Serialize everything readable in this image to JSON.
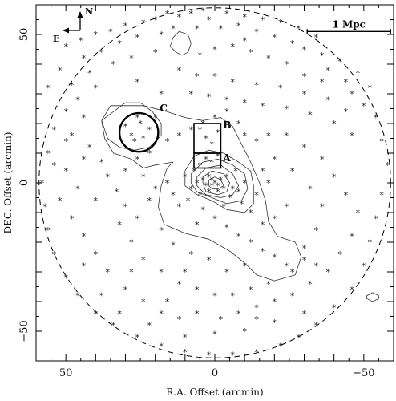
{
  "chart_data": {
    "type": "scatter",
    "title": "",
    "xlabel": "R.A. Offset (arcmin)",
    "ylabel": "DEC. Offset (arcmin)",
    "xlim": [
      60,
      -60
    ],
    "ylim": [
      -60,
      60
    ],
    "x_ticks": [
      50,
      0,
      -50
    ],
    "y_ticks": [
      50,
      0,
      -50
    ],
    "x_tick_labels": [
      "50",
      "0",
      "−50"
    ],
    "y_tick_labels": [
      "50",
      "0",
      "−50"
    ],
    "grid": false,
    "legend": "none",
    "marker": "*",
    "field_circle": {
      "center": [
        0,
        0
      ],
      "radius": 59,
      "style": "dashed"
    },
    "compass": {
      "north_label": "N",
      "east_label": "E"
    },
    "scale_bar": {
      "label": "1 Mpc",
      "x_start": -31,
      "x_end": -59,
      "y": 51
    },
    "annotations": [
      {
        "id": "A",
        "label": "A",
        "type": "box",
        "x_min": -2,
        "x_max": 7,
        "y_min": 5,
        "y_max": 10
      },
      {
        "id": "B",
        "label": "B",
        "type": "box",
        "x_min": -2,
        "x_max": 7,
        "y_min": 10,
        "y_max": 20
      },
      {
        "id": "C",
        "label": "C",
        "type": "circle",
        "center": [
          25.5,
          17
        ],
        "radius": 6.5
      }
    ],
    "contours": [
      [
        [
          35,
          26
        ],
        [
          24,
          26
        ],
        [
          16,
          24
        ],
        [
          10,
          22
        ],
        [
          4,
          21
        ],
        [
          -2,
          22
        ],
        [
          -6,
          19
        ],
        [
          -8,
          15
        ],
        [
          -10,
          11
        ],
        [
          -12,
          7
        ],
        [
          -15,
          0
        ],
        [
          -17,
          -6
        ],
        [
          -18,
          -13
        ],
        [
          -21,
          -18
        ],
        [
          -27,
          -20
        ],
        [
          -29,
          -25
        ],
        [
          -27,
          -31
        ],
        [
          -20,
          -33
        ],
        [
          -14,
          -31
        ],
        [
          -10,
          -27
        ],
        [
          -5,
          -23
        ],
        [
          2,
          -19
        ],
        [
          10,
          -17
        ],
        [
          17,
          -14
        ],
        [
          19,
          -8
        ],
        [
          18,
          -1
        ],
        [
          16,
          5
        ],
        [
          14,
          7
        ],
        [
          20,
          6
        ],
        [
          24,
          5
        ],
        [
          28,
          8
        ],
        [
          34,
          10
        ],
        [
          37,
          15
        ],
        [
          38,
          21
        ]
      ],
      [
        [
          10,
          4
        ],
        [
          7,
          9
        ],
        [
          2,
          11
        ],
        [
          -3,
          10
        ],
        [
          -8,
          7
        ],
        [
          -12,
          4
        ],
        [
          -13,
          -1
        ],
        [
          -13,
          -7
        ],
        [
          -10,
          -10
        ],
        [
          -4,
          -9
        ],
        [
          1,
          -6
        ],
        [
          6,
          -4
        ],
        [
          10,
          -1
        ]
      ],
      [
        [
          8,
          3
        ],
        [
          4,
          7
        ],
        [
          -1,
          8
        ],
        [
          -6,
          6
        ],
        [
          -10,
          3
        ],
        [
          -11,
          -2
        ],
        [
          -9,
          -6
        ],
        [
          -4,
          -7
        ],
        [
          1,
          -5
        ],
        [
          6,
          -3
        ],
        [
          8,
          0
        ]
      ],
      [
        [
          6,
          2
        ],
        [
          3,
          5
        ],
        [
          -2,
          6
        ],
        [
          -6,
          3
        ],
        [
          -8,
          -1
        ],
        [
          -6,
          -4
        ],
        [
          -2,
          -5
        ],
        [
          3,
          -4
        ],
        [
          6,
          -1
        ]
      ],
      [
        [
          4,
          2
        ],
        [
          1,
          4
        ],
        [
          -3,
          3
        ],
        [
          -5,
          0
        ],
        [
          -4,
          -3
        ],
        [
          -1,
          -4
        ],
        [
          3,
          -3
        ],
        [
          4,
          0
        ]
      ],
      [
        [
          2,
          1
        ],
        [
          0,
          2
        ],
        [
          -2,
          1
        ],
        [
          -3,
          -1
        ],
        [
          -1,
          -2
        ],
        [
          1,
          -2
        ],
        [
          2,
          -1
        ]
      ],
      [
        [
          38,
          21
        ],
        [
          34,
          24
        ],
        [
          30,
          27
        ],
        [
          25,
          27
        ],
        [
          21,
          24
        ],
        [
          18,
          20
        ],
        [
          18,
          16
        ],
        [
          22,
          12
        ],
        [
          27,
          11
        ],
        [
          32,
          12
        ],
        [
          36,
          15
        ]
      ],
      [
        [
          14,
          49
        ],
        [
          12,
          51
        ],
        [
          9,
          50
        ],
        [
          8,
          47
        ],
        [
          9,
          44
        ],
        [
          11,
          43
        ],
        [
          13,
          44
        ],
        [
          15,
          46
        ]
      ],
      [
        [
          -51,
          -38
        ],
        [
          -53,
          -37
        ],
        [
          -55,
          -38
        ],
        [
          -55,
          -39
        ],
        [
          -53,
          -40
        ],
        [
          -51,
          -39
        ]
      ]
    ],
    "points": [
      [
        4,
        58
      ],
      [
        8,
        57
      ],
      [
        12,
        56
      ],
      [
        16,
        57
      ],
      [
        20,
        55
      ],
      [
        24,
        54
      ],
      [
        30,
        53
      ],
      [
        35,
        51
      ],
      [
        40,
        50
      ],
      [
        45,
        48
      ],
      [
        50,
        46
      ],
      [
        2,
        55
      ],
      [
        -4,
        57
      ],
      [
        -10,
        56
      ],
      [
        -16,
        55
      ],
      [
        -22,
        54
      ],
      [
        -28,
        52
      ],
      [
        -34,
        49
      ],
      [
        -2,
        52
      ],
      [
        6,
        52
      ],
      [
        14,
        52
      ],
      [
        18,
        50
      ],
      [
        26,
        49
      ],
      [
        32,
        47
      ],
      [
        38,
        44
      ],
      [
        44,
        42
      ],
      [
        52,
        38
      ],
      [
        56,
        32
      ],
      [
        -8,
        53
      ],
      [
        -14,
        51
      ],
      [
        -20,
        49
      ],
      [
        -26,
        47
      ],
      [
        -30,
        45
      ],
      [
        -36,
        43
      ],
      [
        -42,
        41
      ],
      [
        -48,
        37
      ],
      [
        -52,
        32
      ],
      [
        -38,
        38
      ],
      [
        -44,
        34
      ],
      [
        -10,
        48
      ],
      [
        -6,
        46
      ],
      [
        0,
        45
      ],
      [
        5,
        43
      ],
      [
        20,
        44
      ],
      [
        28,
        42
      ],
      [
        34,
        40
      ],
      [
        42,
        37
      ],
      [
        48,
        33
      ],
      [
        -12,
        44
      ],
      [
        -18,
        42
      ],
      [
        -24,
        40
      ],
      [
        -30,
        36
      ],
      [
        -36,
        34
      ],
      [
        -46,
        30
      ],
      [
        -50,
        26
      ],
      [
        -54,
        22
      ],
      [
        -56,
        14
      ],
      [
        -58,
        6
      ],
      [
        -56,
        -4
      ],
      [
        -54,
        -12
      ],
      [
        -52,
        -20
      ],
      [
        -50,
        -28
      ],
      [
        -46,
        -36
      ],
      [
        -40,
        -42
      ],
      [
        -34,
        -48
      ],
      [
        -28,
        -52
      ],
      [
        -22,
        -55
      ],
      [
        -14,
        -57
      ],
      [
        -6,
        -58
      ],
      [
        2,
        -58
      ],
      [
        10,
        -57
      ],
      [
        18,
        -55
      ],
      [
        26,
        -52
      ],
      [
        34,
        -48
      ],
      [
        40,
        -44
      ],
      [
        46,
        -38
      ],
      [
        50,
        -32
      ],
      [
        54,
        -24
      ],
      [
        56,
        -16
      ],
      [
        57,
        -8
      ],
      [
        58,
        0
      ],
      [
        56,
        10
      ],
      [
        54,
        18
      ],
      [
        50,
        24
      ],
      [
        46,
        28
      ],
      [
        40,
        32
      ],
      [
        12,
        38
      ],
      [
        6,
        36
      ],
      [
        0,
        36
      ],
      [
        -6,
        34
      ],
      [
        -14,
        33
      ],
      [
        -22,
        32
      ],
      [
        -30,
        30
      ],
      [
        -38,
        28
      ],
      [
        -44,
        24
      ],
      [
        8,
        30
      ],
      [
        2,
        29
      ],
      [
        -4,
        28
      ],
      [
        -10,
        27
      ],
      [
        -16,
        26
      ],
      [
        -24,
        25
      ],
      [
        -32,
        23
      ],
      [
        -40,
        20
      ],
      [
        -46,
        16
      ],
      [
        18,
        30
      ],
      [
        26,
        34
      ],
      [
        44,
        22
      ],
      [
        48,
        16
      ],
      [
        42,
        12
      ],
      [
        38,
        7
      ],
      [
        36,
        2
      ],
      [
        33,
        -3
      ],
      [
        30,
        -8
      ],
      [
        40,
        -6
      ],
      [
        46,
        -2
      ],
      [
        50,
        4
      ],
      [
        48,
        -12
      ],
      [
        44,
        -18
      ],
      [
        40,
        -24
      ],
      [
        36,
        -30
      ],
      [
        30,
        -36
      ],
      [
        24,
        -40
      ],
      [
        18,
        -44
      ],
      [
        12,
        -46
      ],
      [
        6,
        -44
      ],
      [
        -2,
        -46
      ],
      [
        -8,
        -44
      ],
      [
        -14,
        -42
      ],
      [
        -20,
        -40
      ],
      [
        -26,
        -38
      ],
      [
        -32,
        -34
      ],
      [
        -38,
        -30
      ],
      [
        -42,
        -24
      ],
      [
        -46,
        -18
      ],
      [
        -48,
        -10
      ],
      [
        -44,
        -4
      ],
      [
        -40,
        2
      ],
      [
        -36,
        8
      ],
      [
        -30,
        12
      ],
      [
        -24,
        16
      ],
      [
        -18,
        16
      ],
      [
        -14,
        14
      ],
      [
        -20,
        8
      ],
      [
        -26,
        4
      ],
      [
        -32,
        -2
      ],
      [
        -36,
        -8
      ],
      [
        -34,
        -16
      ],
      [
        -30,
        -22
      ],
      [
        -24,
        -28
      ],
      [
        -18,
        -34
      ],
      [
        -12,
        -36
      ],
      [
        -6,
        -38
      ],
      [
        0,
        -38
      ],
      [
        6,
        -36
      ],
      [
        12,
        -34
      ],
      [
        18,
        -30
      ],
      [
        24,
        -26
      ],
      [
        28,
        -20
      ],
      [
        32,
        -14
      ],
      [
        26,
        -12
      ],
      [
        22,
        -6
      ],
      [
        20,
        -2
      ],
      [
        24,
        2
      ],
      [
        30,
        4
      ],
      [
        26,
        8
      ],
      [
        22,
        10
      ],
      [
        16,
        14
      ],
      [
        12,
        16
      ],
      [
        8,
        18
      ],
      [
        4,
        20
      ],
      [
        0,
        22
      ],
      [
        -4,
        24
      ],
      [
        -8,
        20
      ],
      [
        -10,
        16
      ],
      [
        28,
        16
      ],
      [
        25,
        20
      ],
      [
        22,
        18
      ],
      [
        27,
        14
      ],
      [
        24,
        15
      ],
      [
        30,
        19
      ],
      [
        20,
        22
      ],
      [
        26,
        22
      ],
      [
        3,
        15
      ],
      [
        1,
        13
      ],
      [
        5,
        18
      ],
      [
        -1,
        17
      ],
      [
        3,
        8
      ],
      [
        1,
        7
      ],
      [
        -1,
        9
      ],
      [
        5,
        6
      ],
      [
        2,
        2
      ],
      [
        1,
        1
      ],
      [
        0,
        0
      ],
      [
        -1,
        -1
      ],
      [
        1,
        -1
      ],
      [
        -2,
        1
      ],
      [
        3,
        -1
      ],
      [
        -3,
        -2
      ],
      [
        2,
        -3
      ],
      [
        -1,
        -3
      ],
      [
        4,
        1
      ],
      [
        -4,
        2
      ],
      [
        6,
        0
      ],
      [
        -6,
        -2
      ],
      [
        5,
        -4
      ],
      [
        -5,
        -5
      ],
      [
        8,
        -2
      ],
      [
        -8,
        -3
      ],
      [
        7,
        4
      ],
      [
        -7,
        4
      ],
      [
        10,
        2
      ],
      [
        -10,
        0
      ],
      [
        9,
        -6
      ],
      [
        -9,
        -7
      ],
      [
        12,
        -8
      ],
      [
        -12,
        -10
      ],
      [
        4,
        -9
      ],
      [
        -3,
        -8
      ],
      [
        0,
        -12
      ],
      [
        6,
        -14
      ],
      [
        -4,
        -15
      ],
      [
        -8,
        -18
      ],
      [
        -12,
        -20
      ],
      [
        -16,
        -23
      ],
      [
        -20,
        -25
      ],
      [
        -10,
        -28
      ],
      [
        -4,
        -30
      ],
      [
        2,
        -26
      ],
      [
        8,
        -24
      ],
      [
        14,
        -21
      ],
      [
        -16,
        -14
      ],
      [
        -20,
        -12
      ],
      [
        -24,
        -8
      ],
      [
        -14,
        -4
      ],
      [
        -18,
        0
      ],
      [
        -16,
        4
      ],
      [
        14,
        -4
      ],
      [
        16,
        0
      ],
      [
        18,
        -16
      ],
      [
        10,
        -30
      ],
      [
        -26,
        -30
      ],
      [
        -30,
        -26
      ],
      [
        -34,
        -28
      ],
      [
        38,
        -38
      ],
      [
        32,
        -44
      ],
      [
        22,
        -48
      ],
      [
        10,
        -52
      ],
      [
        0,
        -51
      ],
      [
        -10,
        -50
      ],
      [
        -20,
        -47
      ],
      [
        -30,
        -44
      ],
      [
        -14,
        -46
      ],
      [
        16,
        -40
      ],
      [
        28,
        -30
      ],
      [
        44,
        -28
      ],
      [
        52,
        -6
      ],
      [
        54,
        6
      ],
      [
        44,
        8
      ],
      [
        50,
        14
      ]
    ]
  }
}
